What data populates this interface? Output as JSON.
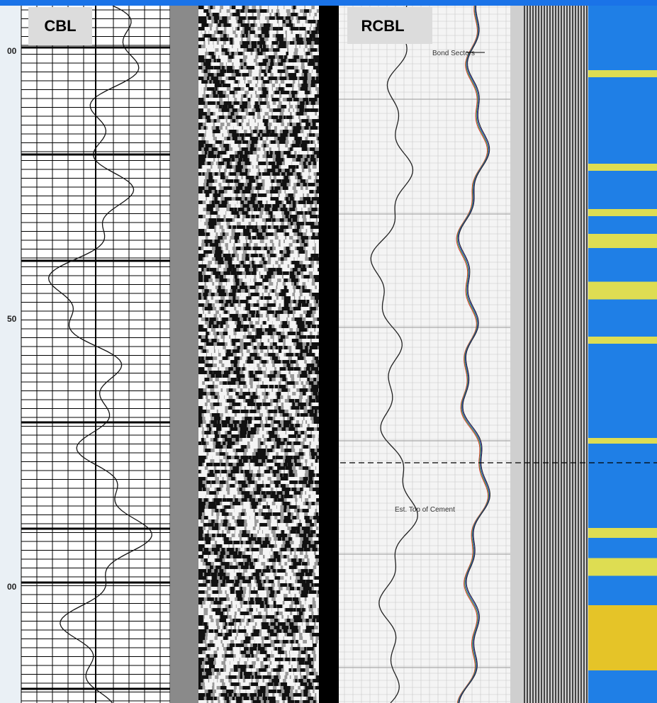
{
  "panels": [
    {
      "label": "CBL",
      "depth_labels": [
        "00",
        "50",
        "00"
      ]
    },
    {
      "label": "RCBL",
      "annotations": [
        "Bond Sectors",
        "Est. Top of Cement"
      ]
    }
  ]
}
